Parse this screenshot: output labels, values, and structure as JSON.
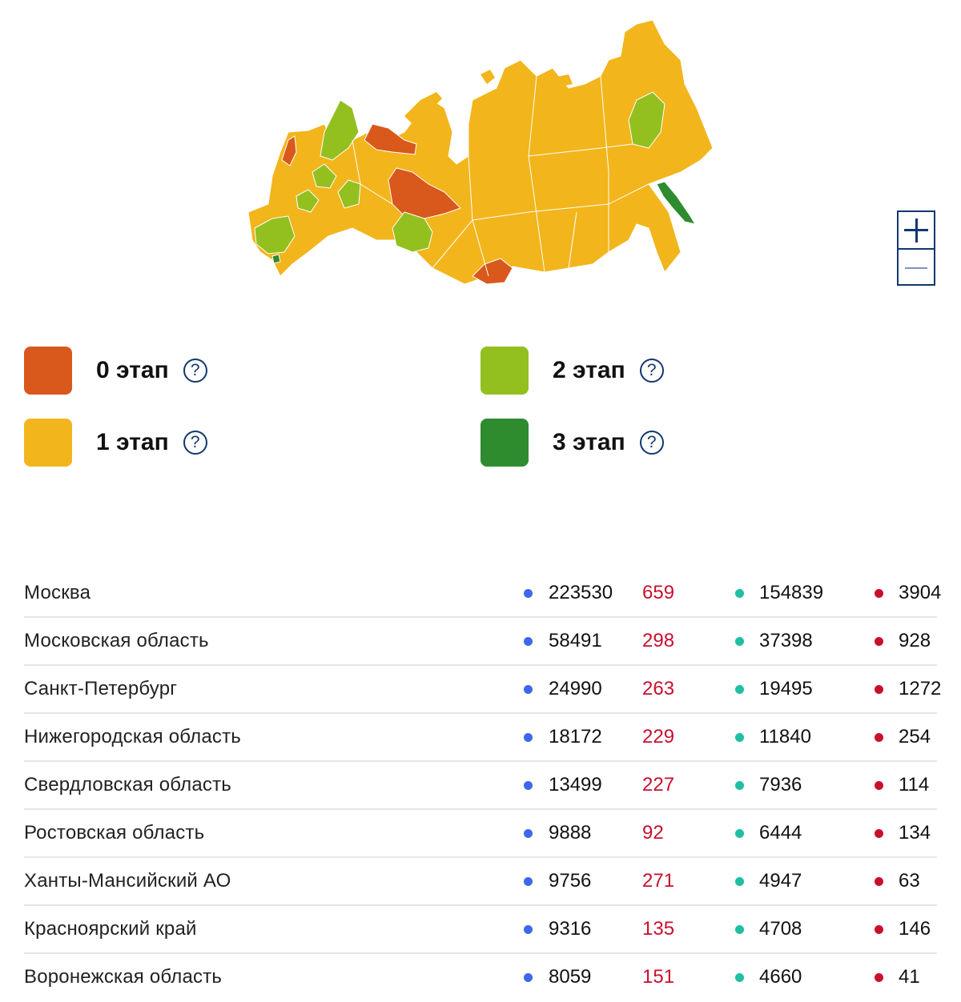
{
  "colors": {
    "stage0": "#d9581b",
    "stage1": "#f2b51b",
    "stage2": "#93c01f",
    "stage3": "#2e8b2e",
    "dot_cases": "#3d68e8",
    "dot_recovered": "#1fbfa0",
    "dot_deaths": "#c8102e",
    "new_cases_text": "#c8102e"
  },
  "map": {
    "zoom_in_icon": "plus-icon",
    "zoom_out_icon": "minus-icon"
  },
  "legend": [
    {
      "label": "0 этап",
      "color": "#d9581b",
      "icon": "question-icon",
      "help": "?"
    },
    {
      "label": "1 этап",
      "color": "#f2b51b",
      "icon": "question-icon",
      "help": "?"
    },
    {
      "label": "2 этап",
      "color": "#93c01f",
      "icon": "question-icon",
      "help": "?"
    },
    {
      "label": "3 этап",
      "color": "#2e8b2e",
      "icon": "question-icon",
      "help": "?"
    }
  ],
  "regions": [
    {
      "name": "Москва",
      "cases": "223530",
      "new": "659",
      "recovered": "154839",
      "deaths": "3904"
    },
    {
      "name": "Московская область",
      "cases": "58491",
      "new": "298",
      "recovered": "37398",
      "deaths": "928"
    },
    {
      "name": "Санкт-Петербург",
      "cases": "24990",
      "new": "263",
      "recovered": "19495",
      "deaths": "1272"
    },
    {
      "name": "Нижегородская область",
      "cases": "18172",
      "new": "229",
      "recovered": "11840",
      "deaths": "254"
    },
    {
      "name": "Свердловская область",
      "cases": "13499",
      "new": "227",
      "recovered": "7936",
      "deaths": "114"
    },
    {
      "name": "Ростовская область",
      "cases": "9888",
      "new": "92",
      "recovered": "6444",
      "deaths": "134"
    },
    {
      "name": "Ханты-Мансийский АО",
      "cases": "9756",
      "new": "271",
      "recovered": "4947",
      "deaths": "63"
    },
    {
      "name": "Красноярский край",
      "cases": "9316",
      "new": "135",
      "recovered": "4708",
      "deaths": "146"
    },
    {
      "name": "Воронежская область",
      "cases": "8059",
      "new": "151",
      "recovered": "4660",
      "deaths": "41"
    }
  ]
}
